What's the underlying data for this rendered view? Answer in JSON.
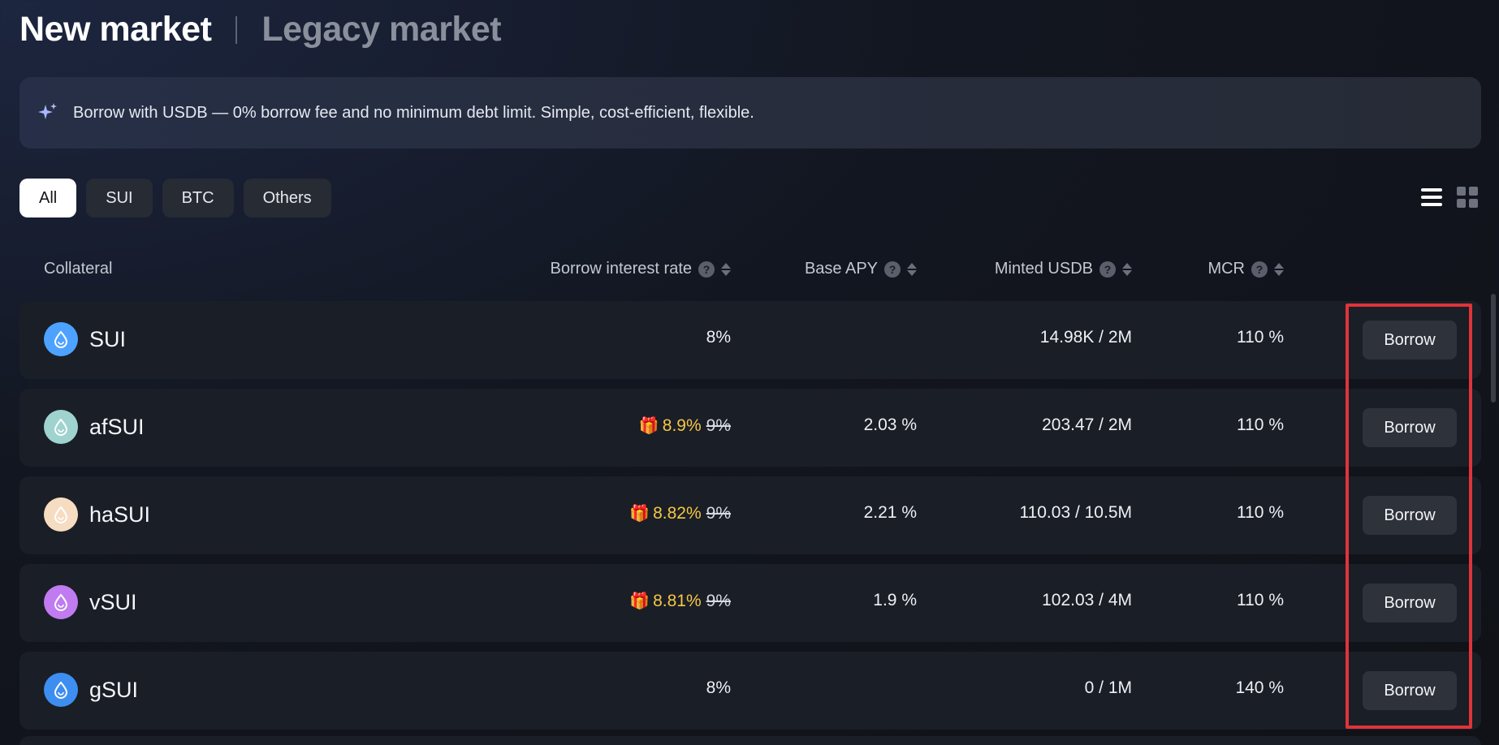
{
  "header": {
    "tab_active": "New market",
    "tab_inactive": "Legacy market"
  },
  "banner": {
    "icon": "sparkle-icon",
    "text": "Borrow with USDB — 0% borrow fee and no minimum debt limit. Simple, cost-efficient, flexible."
  },
  "filters": {
    "items": [
      "All",
      "SUI",
      "BTC",
      "Others"
    ],
    "selected": "All"
  },
  "view_toggle": {
    "list_icon": "list-view-icon",
    "grid_icon": "grid-view-icon"
  },
  "table": {
    "columns": {
      "collateral": "Collateral",
      "rate": "Borrow interest rate",
      "apy": "Base APY",
      "minted": "Minted USDB",
      "mcr": "MCR"
    },
    "help_glyph": "?",
    "borrow_label": "Borrow",
    "rows": [
      {
        "name": "SUI",
        "rate": "8%",
        "promo_rate": "",
        "apy": "",
        "minted": "14.98K / 2M",
        "mcr": "110 %",
        "icon_color": "#4da2ff"
      },
      {
        "name": "afSUI",
        "rate": "9%",
        "promo_rate": "8.9%",
        "apy": "2.03 %",
        "minted": "203.47 / 2M",
        "mcr": "110 %",
        "icon_color": "#9fd3cf"
      },
      {
        "name": "haSUI",
        "rate": "9%",
        "promo_rate": "8.82%",
        "apy": "2.21 %",
        "minted": "110.03 / 10.5M",
        "mcr": "110 %",
        "icon_color": "#f6dcc0"
      },
      {
        "name": "vSUI",
        "rate": "9%",
        "promo_rate": "8.81%",
        "apy": "1.9 %",
        "minted": "102.03 / 4M",
        "mcr": "110 %",
        "icon_color": "#c07bf0"
      },
      {
        "name": "gSUI",
        "rate": "8%",
        "promo_rate": "",
        "apy": "",
        "minted": "0 / 1M",
        "mcr": "140 %",
        "icon_color": "#3d8ef0"
      }
    ]
  },
  "colors": {
    "promo": "#f6c744",
    "highlight": "#e0333a"
  }
}
